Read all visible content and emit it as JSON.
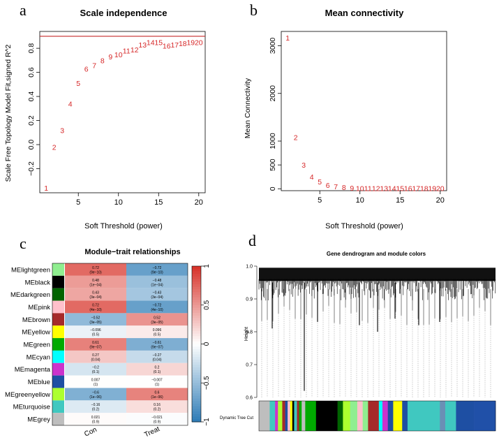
{
  "colors": {
    "axis": "#000000",
    "text_red": "#d62728",
    "line_red": "#c62828"
  },
  "chart_data": [
    {
      "type": "scatter",
      "panel_label": "a",
      "title": "Scale independence",
      "xlabel": "Soft Threshold (power)",
      "ylabel": "Scale Free Topology Model Fit,signed R^2",
      "x_ticks": [
        5,
        10,
        15,
        20
      ],
      "y_ticks": [
        -0.2,
        0.0,
        0.2,
        0.4,
        0.6,
        0.8
      ],
      "y_tick_labels": [
        "−0.2",
        "0.0",
        "0.2",
        "0.4",
        "0.6",
        "0.8"
      ],
      "xlim": [
        0.2,
        20.8
      ],
      "ylim": [
        -0.4,
        0.94
      ],
      "hline": 0.9,
      "points": [
        {
          "x": 1,
          "y": -0.36,
          "label": "1"
        },
        {
          "x": 2,
          "y": -0.02,
          "label": "2"
        },
        {
          "x": 3,
          "y": 0.12,
          "label": "3"
        },
        {
          "x": 4,
          "y": 0.34,
          "label": "4"
        },
        {
          "x": 5,
          "y": 0.51,
          "label": "5"
        },
        {
          "x": 6,
          "y": 0.63,
          "label": "6"
        },
        {
          "x": 7,
          "y": 0.66,
          "label": "7"
        },
        {
          "x": 8,
          "y": 0.7,
          "label": "8"
        },
        {
          "x": 9,
          "y": 0.73,
          "label": "9"
        },
        {
          "x": 10,
          "y": 0.75,
          "label": "10"
        },
        {
          "x": 11,
          "y": 0.78,
          "label": "11"
        },
        {
          "x": 12,
          "y": 0.79,
          "label": "12"
        },
        {
          "x": 13,
          "y": 0.83,
          "label": "13"
        },
        {
          "x": 14,
          "y": 0.85,
          "label": "14"
        },
        {
          "x": 15,
          "y": 0.85,
          "label": "15"
        },
        {
          "x": 16,
          "y": 0.82,
          "label": "16"
        },
        {
          "x": 17,
          "y": 0.83,
          "label": "17"
        },
        {
          "x": 18,
          "y": 0.84,
          "label": "18"
        },
        {
          "x": 19,
          "y": 0.85,
          "label": "19"
        },
        {
          "x": 20,
          "y": 0.85,
          "label": "20"
        }
      ]
    },
    {
      "type": "scatter",
      "panel_label": "b",
      "title": "Mean connectivity",
      "xlabel": "Soft Threshold (power)",
      "ylabel": "Mean Connectivity",
      "x_ticks": [
        5,
        10,
        15,
        20
      ],
      "y_ticks": [
        0,
        500,
        1000,
        2000,
        3000
      ],
      "xlim": [
        0.2,
        20.8
      ],
      "ylim": [
        -40,
        3300
      ],
      "points": [
        {
          "x": 1,
          "y": 3170,
          "label": "1"
        },
        {
          "x": 2,
          "y": 1080,
          "label": "2"
        },
        {
          "x": 3,
          "y": 500,
          "label": "3"
        },
        {
          "x": 4,
          "y": 250,
          "label": "4"
        },
        {
          "x": 5,
          "y": 150,
          "label": "5"
        },
        {
          "x": 6,
          "y": 80,
          "label": "6"
        },
        {
          "x": 7,
          "y": 50,
          "label": "7"
        },
        {
          "x": 8,
          "y": 30,
          "label": "8"
        },
        {
          "x": 9,
          "y": 20,
          "label": "9"
        },
        {
          "x": 10,
          "y": 10,
          "label": "10"
        },
        {
          "x": 11,
          "y": 10,
          "label": "11"
        },
        {
          "x": 12,
          "y": 10,
          "label": "12"
        },
        {
          "x": 13,
          "y": 10,
          "label": "13"
        },
        {
          "x": 14,
          "y": 10,
          "label": "14"
        },
        {
          "x": 15,
          "y": 10,
          "label": "15"
        },
        {
          "x": 16,
          "y": 10,
          "label": "16"
        },
        {
          "x": 17,
          "y": 10,
          "label": "17"
        },
        {
          "x": 18,
          "y": 10,
          "label": "18"
        },
        {
          "x": 19,
          "y": 10,
          "label": "19"
        },
        {
          "x": 20,
          "y": 10,
          "label": "20"
        }
      ]
    },
    {
      "type": "heatmap",
      "panel_label": "c",
      "title": "Module−trait relationships",
      "columns": [
        "Con",
        "Treat"
      ],
      "colorbar_ticks": [
        1,
        0.5,
        0,
        -0.5,
        -1
      ],
      "colorbar_labels": [
        "1",
        "0.5",
        "0",
        "−0.5",
        "−1"
      ],
      "rows": [
        {
          "module": "MElightgreen",
          "color": "#90ee90",
          "values": [
            0.72,
            -0.72
          ],
          "labels": [
            "0.72",
            "−0.72"
          ],
          "pvalues": [
            "(9e−10)",
            "(9e−10)"
          ]
        },
        {
          "module": "MEblack",
          "color": "#000000",
          "values": [
            0.48,
            -0.48
          ],
          "labels": [
            "0.48",
            "−0.48"
          ],
          "pvalues": [
            "(1e−04)",
            "(1e−04)"
          ]
        },
        {
          "module": "MEdarkgreen",
          "color": "#006400",
          "values": [
            0.43,
            -0.43
          ],
          "labels": [
            "0.43",
            "−0.43"
          ],
          "pvalues": [
            "(3e−04)",
            "(3e−04)"
          ]
        },
        {
          "module": "MEpink",
          "color": "#ffc0cb",
          "values": [
            0.72,
            -0.72
          ],
          "labels": [
            "0.72",
            "−0.72"
          ],
          "pvalues": [
            "(4e−10)",
            "(4e−10)"
          ]
        },
        {
          "module": "MEbrown",
          "color": "#a52a2a",
          "values": [
            -0.52,
            0.52
          ],
          "labels": [
            "−0.52",
            "0.52"
          ],
          "pvalues": [
            "(3e−05)",
            "(3e−05)"
          ]
        },
        {
          "module": "MEyellow",
          "color": "#ffff00",
          "values": [
            -0.096,
            0.096
          ],
          "labels": [
            "−0.096",
            "0.096"
          ],
          "pvalues": [
            "(0.5)",
            "(0.5)"
          ]
        },
        {
          "module": "MEgreen",
          "color": "#00aa00",
          "values": [
            0.61,
            -0.61
          ],
          "labels": [
            "0.61",
            "−0.61"
          ],
          "pvalues": [
            "(9e−07)",
            "(9e−07)"
          ]
        },
        {
          "module": "MEcyan",
          "color": "#00ffff",
          "values": [
            0.27,
            -0.27
          ],
          "labels": [
            "0.27",
            "−0.27"
          ],
          "pvalues": [
            "(0.04)",
            "(0.04)"
          ]
        },
        {
          "module": "MEmagenta",
          "color": "#cc33cc",
          "values": [
            -0.2,
            0.2
          ],
          "labels": [
            "−0.2",
            "0.2"
          ],
          "pvalues": [
            "(0.1)",
            "(0.1)"
          ]
        },
        {
          "module": "MEblue",
          "color": "#1e4fa3",
          "values": [
            0.007,
            -0.007
          ],
          "labels": [
            "0.007",
            "−0.007"
          ],
          "pvalues": [
            "(1)",
            "(1)"
          ]
        },
        {
          "module": "MEgreenyellow",
          "color": "#adff2f",
          "values": [
            -0.6,
            0.6
          ],
          "labels": [
            "−0.6",
            "0.6"
          ],
          "pvalues": [
            "(1e−06)",
            "(1e−06)"
          ]
        },
        {
          "module": "MEturquoise",
          "color": "#40c8c0",
          "values": [
            -0.16,
            0.16
          ],
          "labels": [
            "−0.16",
            "0.16"
          ],
          "pvalues": [
            "(0.2)",
            "(0.2)"
          ]
        },
        {
          "module": "MEgrey",
          "color": "#bebebe",
          "values": [
            0.021,
            -0.021
          ],
          "labels": [
            "0.021",
            "−0.021"
          ],
          "pvalues": [
            "(0.9)",
            "(0.9)"
          ]
        }
      ]
    },
    {
      "type": "dendrogram",
      "panel_label": "d",
      "title": "Gene dendrogram and module colors",
      "ylabel": "Height",
      "y_ticks": [
        0.6,
        0.7,
        0.8,
        0.9,
        1.0
      ],
      "y_tick_labels": [
        "0.6",
        "0.7",
        "0.8",
        "0.9",
        "1.0"
      ],
      "ylim": [
        0.6,
        1.0
      ],
      "color_bar_label": "Dynamic Tree Cut",
      "module_color_segments": [
        {
          "color": "#bebebe",
          "weight": 3
        },
        {
          "color": "#40c8c0",
          "weight": 1.5
        },
        {
          "color": "#cc33cc",
          "weight": 0.8
        },
        {
          "color": "#adff2f",
          "weight": 1.2
        },
        {
          "color": "#a52a2a",
          "weight": 0.8
        },
        {
          "color": "#1e4fa3",
          "weight": 0.7
        },
        {
          "color": "#ffc0cb",
          "weight": 0.7
        },
        {
          "color": "#ffff00",
          "weight": 0.6
        },
        {
          "color": "#000000",
          "weight": 0.5
        },
        {
          "color": "#40c8c0",
          "weight": 0.8
        },
        {
          "color": "#a52a2a",
          "weight": 0.6
        },
        {
          "color": "#00aa00",
          "weight": 0.7
        },
        {
          "color": "#bebebe",
          "weight": 1.0
        },
        {
          "color": "#00aa00",
          "weight": 3
        },
        {
          "color": "#000000",
          "weight": 6
        },
        {
          "color": "#006400",
          "weight": 1.5
        },
        {
          "color": "#adff2f",
          "weight": 2
        },
        {
          "color": "#90ee90",
          "weight": 2
        },
        {
          "color": "#ffc0cb",
          "weight": 1.5
        },
        {
          "color": "#90ee90",
          "weight": 1.5
        },
        {
          "color": "#a52a2a",
          "weight": 3
        },
        {
          "color": "#00ffff",
          "weight": 1
        },
        {
          "color": "#cc33cc",
          "weight": 1.5
        },
        {
          "color": "#1e4fa3",
          "weight": 1.5
        },
        {
          "color": "#ffff00",
          "weight": 2.5
        },
        {
          "color": "#1e4fa3",
          "weight": 1.5
        },
        {
          "color": "#40c8c0",
          "weight": 9
        },
        {
          "color": "#6a8fb5",
          "weight": 1.5
        },
        {
          "color": "#40c8c0",
          "weight": 3
        },
        {
          "color": "#1e4fa3",
          "weight": 5
        },
        {
          "color": "#2050a8",
          "weight": 6
        }
      ]
    }
  ]
}
